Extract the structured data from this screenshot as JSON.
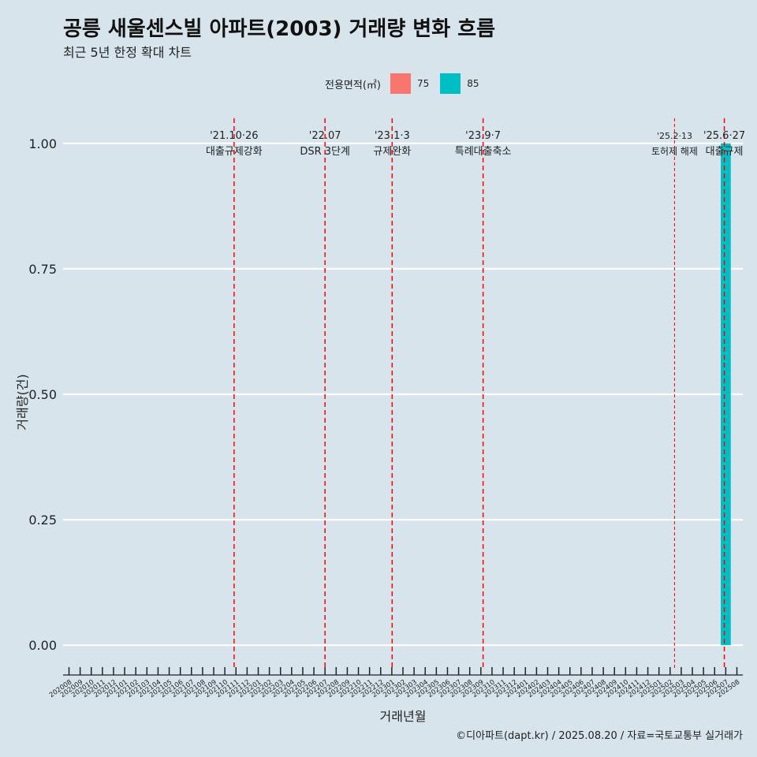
{
  "title": "공릉 새울센스빌 아파트(2003) 거래량 변화 흐름",
  "subtitle": "최근 5년 한정 확대 차트",
  "caption": "©디아파트(dapt.kr) / 2025.08.20 / 자료=국토교통부 실거래가",
  "legend": {
    "title": "전용면적(㎡)",
    "items": [
      {
        "label": "75",
        "color": "#f8766d"
      },
      {
        "label": "85",
        "color": "#00bfc4"
      }
    ]
  },
  "chart_data": {
    "type": "bar",
    "xlabel": "거래년월",
    "ylabel": "거래량(건)",
    "ylim": [
      -0.05,
      1.05
    ],
    "yticks": [
      0.0,
      0.25,
      0.5,
      0.75,
      1.0
    ],
    "ytick_labels": [
      "0.00",
      "0.25",
      "0.50",
      "0.75",
      "1.00"
    ],
    "grid": true,
    "categories": [
      "202008",
      "202009",
      "202010",
      "202011",
      "202012",
      "202101",
      "202102",
      "202103",
      "202104",
      "202105",
      "202106",
      "202107",
      "202108",
      "202109",
      "202110",
      "202111",
      "202112",
      "202201",
      "202202",
      "202203",
      "202204",
      "202205",
      "202206",
      "202207",
      "202208",
      "202209",
      "202210",
      "202211",
      "202212",
      "202301",
      "202302",
      "202303",
      "202304",
      "202305",
      "202306",
      "202307",
      "202308",
      "202309",
      "202310",
      "202311",
      "202312",
      "202401",
      "202402",
      "202403",
      "202404",
      "202405",
      "202406",
      "202407",
      "202408",
      "202409",
      "202410",
      "202411",
      "202412",
      "202501",
      "202502",
      "202503",
      "202504",
      "202505",
      "202506",
      "202507",
      "202508"
    ],
    "series": [
      {
        "name": "75",
        "color": "#f8766d",
        "values": [
          0,
          0,
          0,
          0,
          0,
          0,
          0,
          0,
          0,
          0,
          0,
          0,
          0,
          0,
          0,
          0,
          0,
          0,
          0,
          0,
          0,
          0,
          0,
          0,
          0,
          0,
          0,
          0,
          0,
          0,
          0,
          0,
          0,
          0,
          0,
          0,
          0,
          0,
          0,
          0,
          0,
          0,
          0,
          0,
          0,
          0,
          0,
          0,
          0,
          0,
          0,
          0,
          0,
          0,
          0,
          0,
          0,
          0,
          0,
          0,
          0
        ]
      },
      {
        "name": "85",
        "color": "#00bfc4",
        "values": [
          0,
          0,
          0,
          0,
          0,
          0,
          0,
          0,
          0,
          0,
          0,
          0,
          0,
          0,
          0,
          0,
          0,
          0,
          0,
          0,
          0,
          0,
          0,
          0,
          0,
          0,
          0,
          0,
          0,
          0,
          0,
          0,
          0,
          0,
          0,
          0,
          0,
          0,
          0,
          0,
          0,
          0,
          0,
          0,
          0,
          0,
          0,
          0,
          0,
          0,
          0,
          0,
          0,
          0,
          0,
          0,
          0,
          0,
          0,
          1,
          0
        ]
      }
    ],
    "events": [
      {
        "at": "202110",
        "offset": 0.83,
        "date": "'21.10·26",
        "label": "대출규제강화",
        "style": "major"
      },
      {
        "at": "202207",
        "offset": 0.0,
        "date": "'22.07",
        "label": "DSR 3단계",
        "style": "major"
      },
      {
        "at": "202301",
        "offset": 0.03,
        "date": "'23.1·3",
        "label": "규제완화",
        "style": "major"
      },
      {
        "at": "202309",
        "offset": 0.2,
        "date": "'23.9·7",
        "label": "특례대출축소",
        "style": "major"
      },
      {
        "at": "202502",
        "offset": 0.4,
        "date": "'25.2·13",
        "label": "토허제 해제",
        "style": "minor"
      },
      {
        "at": "202506",
        "offset": 0.87,
        "date": "'25.6·27",
        "label": "대출규제",
        "style": "major"
      }
    ]
  }
}
